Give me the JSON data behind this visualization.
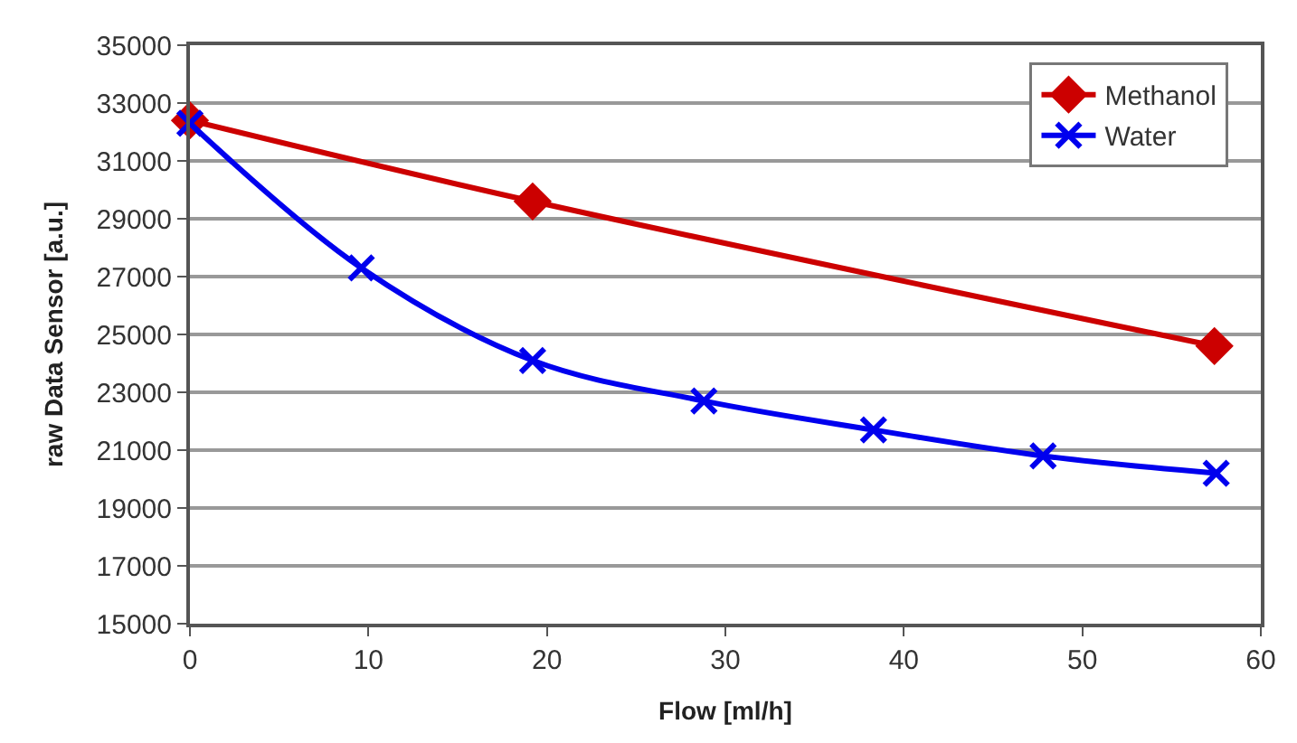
{
  "chart_data": {
    "type": "line",
    "xlabel": "Flow [ml/h]",
    "ylabel": "raw Data Sensor [a.u.]",
    "xlim": [
      0,
      60
    ],
    "xticks": [
      0,
      10,
      20,
      30,
      40,
      50,
      60
    ],
    "ylim": [
      15000,
      35000
    ],
    "yticks": [
      15000,
      17000,
      19000,
      21000,
      23000,
      25000,
      27000,
      29000,
      31000,
      33000,
      35000
    ],
    "grid": "y",
    "legend": "top right",
    "series": [
      {
        "name": "Methanol",
        "color": "#cc0000",
        "marker": "diamond",
        "x": [
          0,
          19.2,
          57.4
        ],
        "values": [
          32400,
          29600,
          24600
        ]
      },
      {
        "name": "Water",
        "color": "#0000ee",
        "marker": "cross",
        "x": [
          0,
          9.6,
          19.2,
          28.8,
          38.3,
          47.8,
          57.5
        ],
        "values": [
          32300,
          27300,
          24100,
          22700,
          21700,
          20800,
          20200
        ]
      }
    ]
  }
}
